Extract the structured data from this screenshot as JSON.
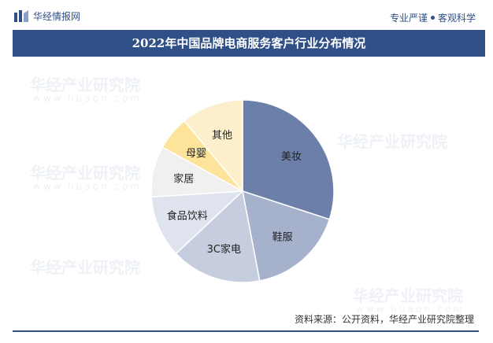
{
  "header": {
    "brand": "华经情报网",
    "tagline_left": "专业严谨",
    "tagline_right": "客观科学"
  },
  "watermark": {
    "text": "华经产业研究院",
    "sub": "www.huaon.com"
  },
  "chart_data": {
    "type": "pie",
    "title": "2022年中国品牌电商服务客户行业分布情况",
    "categories": [
      "美妆",
      "鞋服",
      "3C家电",
      "食品饮料",
      "家居",
      "母婴",
      "其他"
    ],
    "values": [
      30,
      17,
      16,
      11,
      9,
      6,
      11
    ],
    "colors": [
      "#6b7fa9",
      "#a6b2cc",
      "#c5cddf",
      "#dfe3ed",
      "#f0f0f0",
      "#fde49a",
      "#fdefcb"
    ]
  },
  "footer": {
    "source": "资料来源：公开资料，华经产业研究院整理"
  }
}
